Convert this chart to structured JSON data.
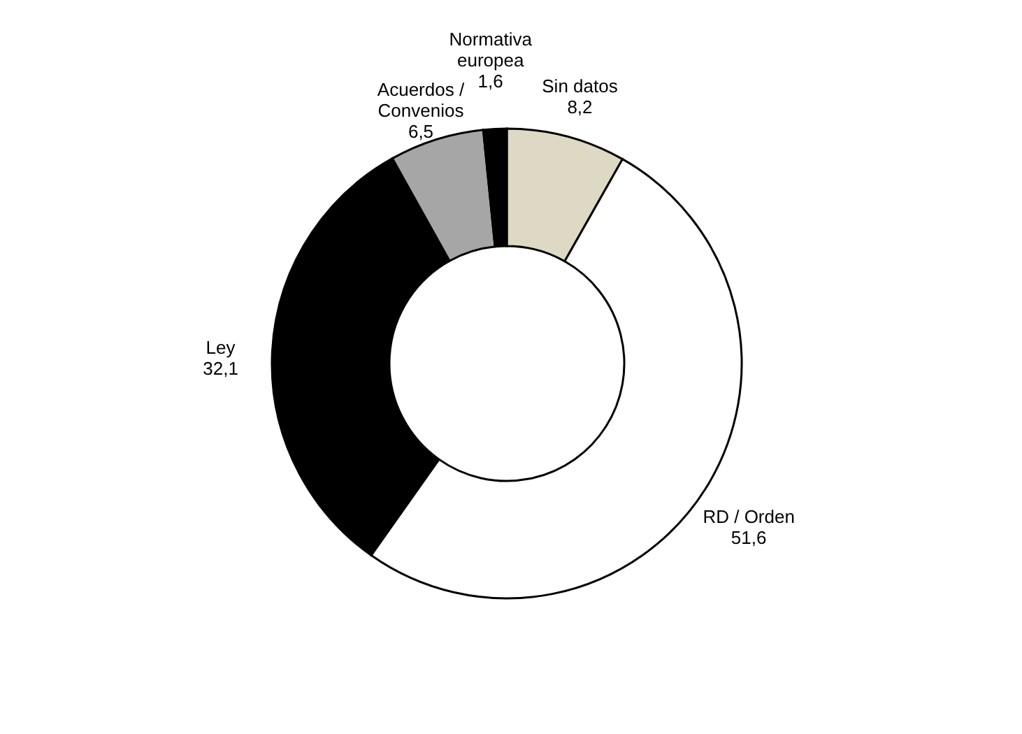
{
  "chart_data": {
    "type": "donut",
    "categories": [
      "Sin datos",
      "RD / Orden",
      "Ley",
      "Acuerdos / Convenios",
      "Normativa europea"
    ],
    "values": [
      8.2,
      51.6,
      32.1,
      6.5,
      1.6
    ],
    "colors": [
      "#ddd9c4",
      "#ffffff",
      "#000000",
      "#a6a6a6",
      "#000000"
    ],
    "value_labels": [
      "8,2",
      "51,6",
      "32,1",
      "6,5",
      "1,6"
    ],
    "legend": false
  }
}
